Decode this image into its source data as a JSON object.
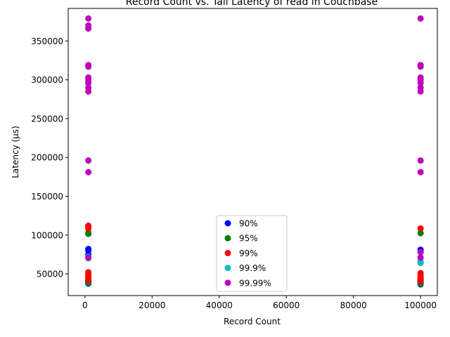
{
  "chart_data": {
    "type": "scatter",
    "title": "Record Count vs. Tail Latency of read in Couchbase",
    "xlabel": "Record Count",
    "ylabel": "Latency (µs)",
    "xlim": [
      -5000,
      105000
    ],
    "ylim": [
      22000,
      392000
    ],
    "xticks": [
      0,
      20000,
      40000,
      60000,
      80000,
      100000
    ],
    "yticks": [
      50000,
      100000,
      150000,
      200000,
      250000,
      300000,
      350000
    ],
    "grid": false,
    "legend_position": "lower center",
    "series": [
      {
        "name": "90%",
        "color": "#0000ff",
        "points": [
          [
            1000,
            37500
          ],
          [
            1000,
            38500
          ],
          [
            1000,
            39500
          ],
          [
            1000,
            41000
          ],
          [
            1000,
            43000
          ],
          [
            1000,
            75000
          ],
          [
            1000,
            80000
          ],
          [
            1000,
            82000
          ],
          [
            100000,
            36500
          ],
          [
            100000,
            37500
          ],
          [
            100000,
            38500
          ],
          [
            100000,
            40000
          ],
          [
            100000,
            42000
          ],
          [
            100000,
            44000
          ],
          [
            100000,
            79000
          ],
          [
            100000,
            81000
          ]
        ]
      },
      {
        "name": "95%",
        "color": "#008000",
        "points": [
          [
            1000,
            38500
          ],
          [
            1000,
            40000
          ],
          [
            1000,
            41500
          ],
          [
            1000,
            43500
          ],
          [
            1000,
            45500
          ],
          [
            1000,
            101500
          ],
          [
            1000,
            103000
          ],
          [
            100000,
            37500
          ],
          [
            100000,
            39000
          ],
          [
            100000,
            40500
          ],
          [
            100000,
            42500
          ],
          [
            100000,
            44500
          ],
          [
            100000,
            102500
          ]
        ]
      },
      {
        "name": "99%",
        "color": "#ff0000",
        "points": [
          [
            1000,
            42000
          ],
          [
            1000,
            44500
          ],
          [
            1000,
            47000
          ],
          [
            1000,
            49500
          ],
          [
            1000,
            52000
          ],
          [
            1000,
            108500
          ],
          [
            1000,
            110500
          ],
          [
            1000,
            112000
          ],
          [
            100000,
            40500
          ],
          [
            100000,
            42500
          ],
          [
            100000,
            45000
          ],
          [
            100000,
            48000
          ],
          [
            100000,
            51000
          ],
          [
            100000,
            108500
          ]
        ]
      },
      {
        "name": "99.9%",
        "color": "#00bfbf",
        "points": [
          [
            1000,
            70000
          ],
          [
            1000,
            72000
          ],
          [
            100000,
            64000
          ],
          [
            100000,
            66000
          ]
        ]
      },
      {
        "name": "99.99%",
        "color": "#bf00bf",
        "points": [
          [
            1000,
            71000
          ],
          [
            1000,
            181000
          ],
          [
            1000,
            196000
          ],
          [
            1000,
            285000
          ],
          [
            1000,
            290000
          ],
          [
            1000,
            296000
          ],
          [
            1000,
            300000
          ],
          [
            1000,
            303000
          ],
          [
            1000,
            317000
          ],
          [
            1000,
            319000
          ],
          [
            1000,
            366000
          ],
          [
            1000,
            370000
          ],
          [
            1000,
            379000
          ],
          [
            100000,
            71000
          ],
          [
            100000,
            78000
          ],
          [
            100000,
            181000
          ],
          [
            100000,
            196000
          ],
          [
            100000,
            285000
          ],
          [
            100000,
            290000
          ],
          [
            100000,
            296000
          ],
          [
            100000,
            300000
          ],
          [
            100000,
            303000
          ],
          [
            100000,
            317000
          ],
          [
            100000,
            319000
          ],
          [
            100000,
            379000
          ]
        ]
      }
    ]
  }
}
